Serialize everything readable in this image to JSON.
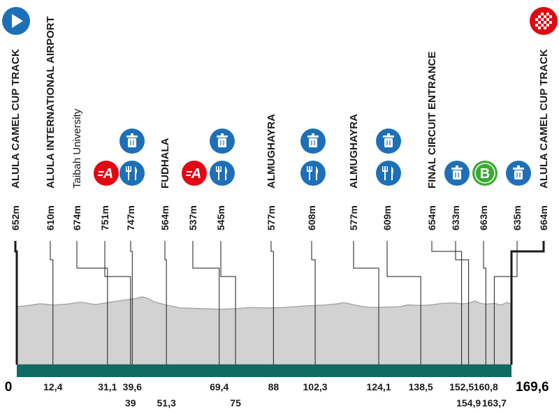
{
  "profile": {
    "distance_total": 169.6,
    "colors": {
      "ground": "#0e6b63",
      "profile_fill": "#d2d2d2",
      "profile_line": "#a8a8a8",
      "line": "#1a1a1a",
      "icon_blue": "#1d70b8",
      "sprint_red": "#e30613",
      "bonus_green": "#3aaa35"
    },
    "elevation": [
      [
        0,
        0.76
      ],
      [
        3,
        0.78
      ],
      [
        8,
        0.83
      ],
      [
        12.4,
        0.8
      ],
      [
        17,
        0.82
      ],
      [
        22,
        0.87
      ],
      [
        27,
        0.81
      ],
      [
        31.1,
        0.86
      ],
      [
        35,
        0.9
      ],
      [
        39,
        0.94
      ],
      [
        41,
        0.96
      ],
      [
        43,
        1.0
      ],
      [
        45,
        0.96
      ],
      [
        47,
        0.88
      ],
      [
        51.3,
        0.8
      ],
      [
        56,
        0.73
      ],
      [
        60,
        0.72
      ],
      [
        65,
        0.71
      ],
      [
        69.4,
        0.7
      ],
      [
        75,
        0.71
      ],
      [
        80,
        0.74
      ],
      [
        84,
        0.73
      ],
      [
        88,
        0.73
      ],
      [
        92,
        0.74
      ],
      [
        97,
        0.77
      ],
      [
        102.3,
        0.79
      ],
      [
        106,
        0.8
      ],
      [
        110,
        0.83
      ],
      [
        112,
        0.86
      ],
      [
        114,
        0.83
      ],
      [
        118,
        0.77
      ],
      [
        121,
        0.74
      ],
      [
        124.1,
        0.74
      ],
      [
        127,
        0.75
      ],
      [
        131,
        0.76
      ],
      [
        134,
        0.8
      ],
      [
        138.5,
        0.79
      ],
      [
        142,
        0.8
      ],
      [
        146,
        0.84
      ],
      [
        150,
        0.85
      ],
      [
        152.5,
        0.83
      ],
      [
        154.9,
        0.84
      ],
      [
        157,
        0.9
      ],
      [
        159,
        0.84
      ],
      [
        160.8,
        0.82
      ],
      [
        163.7,
        0.84
      ],
      [
        166,
        0.8
      ],
      [
        168,
        0.86
      ],
      [
        169.6,
        0.82
      ]
    ]
  },
  "waypoints": [
    {
      "name": "ALULA CAMEL CUP TRACK",
      "altitude": "652m",
      "km": 0,
      "km_label": "0",
      "row": 1,
      "kind": "start",
      "icons": [
        "start-flag"
      ]
    },
    {
      "name": "ALULA INTERNATIONAL AIRPORT",
      "altitude": "610m",
      "km": 12.4,
      "km_label": "12,4",
      "row": 1,
      "kind": "place",
      "icons": []
    },
    {
      "name": "Taibah University",
      "altitude": "674m",
      "km": 31.1,
      "km_label": "31,1",
      "row": 1,
      "kind": "place-thin",
      "icons": []
    },
    {
      "name": "",
      "altitude": "751m",
      "km": 39,
      "km_label": "39",
      "row": 2,
      "kind": "sprint",
      "icons": [
        "sprint"
      ]
    },
    {
      "name": "",
      "altitude": "747m",
      "km": 39.6,
      "km_label": "39,6",
      "row": 1,
      "kind": "feed",
      "icons": [
        "waste",
        "food"
      ]
    },
    {
      "name": "FUDHALA",
      "altitude": "564m",
      "km": 51.3,
      "km_label": "51,3",
      "row": 2,
      "kind": "place",
      "icons": []
    },
    {
      "name": "",
      "altitude": "537m",
      "km": 69.4,
      "km_label": "69,4",
      "row": 1,
      "kind": "sprint",
      "icons": [
        "sprint"
      ]
    },
    {
      "name": "",
      "altitude": "545m",
      "km": 75,
      "km_label": "75",
      "row": 2,
      "kind": "feed",
      "icons": [
        "waste",
        "food"
      ]
    },
    {
      "name": "ALMUGHAYRA",
      "altitude": "577m",
      "km": 88,
      "km_label": "88",
      "row": 1,
      "kind": "place",
      "icons": []
    },
    {
      "name": "",
      "altitude": "608m",
      "km": 102.3,
      "km_label": "102,3",
      "row": 1,
      "kind": "feed",
      "icons": [
        "waste",
        "food"
      ]
    },
    {
      "name": "ALMUGHAYRA",
      "altitude": "577m",
      "km": 124.1,
      "km_label": "124,1",
      "row": 1,
      "kind": "place",
      "icons": []
    },
    {
      "name": "",
      "altitude": "609m",
      "km": 138.5,
      "km_label": "138,5",
      "row": 1,
      "kind": "feed",
      "icons": [
        "waste",
        "food"
      ]
    },
    {
      "name": "FINAL CIRCUIT ENTRANCE",
      "altitude": "654m",
      "km": 152.5,
      "km_label": "152,5",
      "row": 1,
      "kind": "place",
      "icons": []
    },
    {
      "name": "",
      "altitude": "633m",
      "km": 154.9,
      "km_label": "154,9",
      "row": 2,
      "kind": "waste",
      "icons": [
        "waste"
      ]
    },
    {
      "name": "",
      "altitude": "663m",
      "km": 160.8,
      "km_label": "160,8",
      "row": 1,
      "kind": "bonus",
      "icons": [
        "bonus"
      ]
    },
    {
      "name": "",
      "altitude": "635m",
      "km": 163.7,
      "km_label": "163,7",
      "row": 2,
      "kind": "waste",
      "icons": [
        "waste"
      ]
    },
    {
      "name": "ALULA CAMEL CUP TRACK",
      "altitude": "664m",
      "km": 169.6,
      "km_label": "169,6",
      "row": 1,
      "kind": "finish",
      "icons": [
        "finish-flag"
      ]
    }
  ],
  "icon_text": {
    "sprint": "A",
    "bonus": "B"
  }
}
